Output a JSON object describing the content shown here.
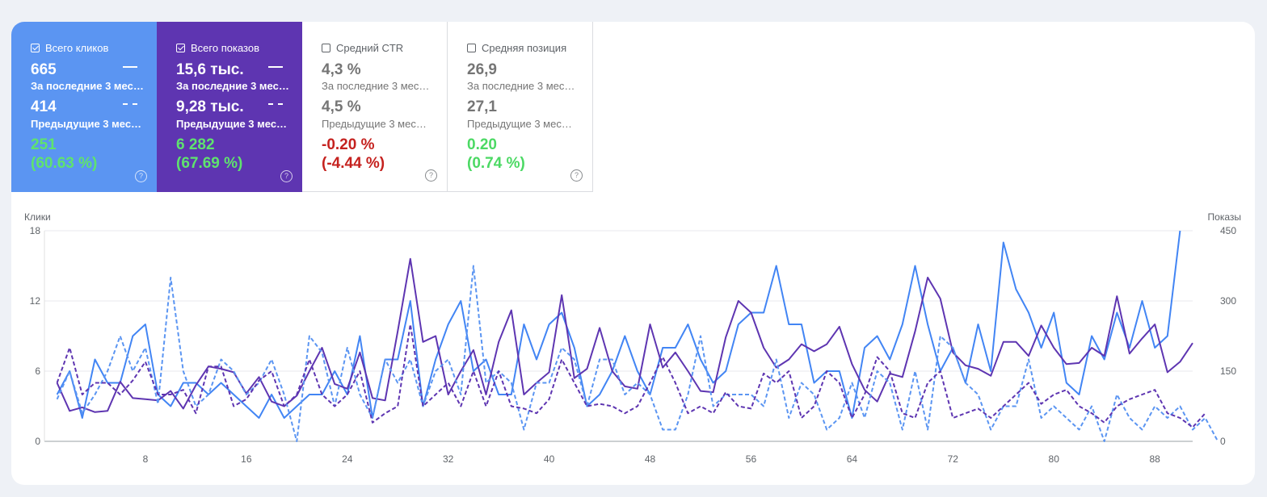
{
  "cards": {
    "clicks": {
      "title": "Всего кликов",
      "checked": true,
      "current_value": "665",
      "current_label": "За последние 3 мес…",
      "previous_value": "414",
      "previous_label": "Предыдущие 3 мес…",
      "delta_abs": "251",
      "delta_pct": "(60.63 %)",
      "delta_direction": "up",
      "help": "?"
    },
    "impressions": {
      "title": "Всего показов",
      "checked": true,
      "current_value": "15,6 тыс.",
      "current_label": "За последние 3 мес…",
      "previous_value": "9,28 тыс.",
      "previous_label": "Предыдущие 3 мес…",
      "delta_abs": "6 282",
      "delta_pct": "(67.69 %)",
      "delta_direction": "up",
      "help": "?"
    },
    "ctr": {
      "title": "Средний CTR",
      "checked": false,
      "current_value": "4,3 %",
      "current_label": "За последние 3 мес…",
      "previous_value": "4,5 %",
      "previous_label": "Предыдущие 3 мес…",
      "delta_abs": "-0.20 %",
      "delta_pct": "(-4.44 %)",
      "delta_direction": "down",
      "help": "?"
    },
    "position": {
      "title": "Средняя позиция",
      "checked": false,
      "current_value": "26,9",
      "current_label": "За последние 3 мес…",
      "previous_value": "27,1",
      "previous_label": "Предыдущие 3 мес…",
      "delta_abs": "0.20",
      "delta_pct": "(0.74 %)",
      "delta_direction": "up",
      "help": "?"
    }
  },
  "colors": {
    "clicks": "#5b95f2",
    "impressions": "#5e35b1",
    "positive": "#4cd964",
    "negative": "#c5221f"
  },
  "chart_data": {
    "type": "line",
    "ylabel_left": "Клики",
    "ylabel_right": "Показы",
    "ylim_left": [
      0,
      18
    ],
    "ylim_right": [
      0,
      450
    ],
    "yticks_left": [
      0,
      6,
      12,
      18
    ],
    "yticks_right": [
      0,
      150,
      300,
      450
    ],
    "xticks": [
      8,
      16,
      24,
      32,
      40,
      48,
      56,
      64,
      72,
      80,
      88
    ],
    "xlim": [
      0,
      91
    ],
    "grid": true,
    "legend": "none",
    "series": [
      {
        "axis": "left",
        "style": "solid",
        "color": "#4285f4",
        "period": "current",
        "values": [
          4,
          6,
          2,
          7,
          5,
          5,
          9,
          10,
          4,
          3,
          5,
          5,
          4,
          5,
          4,
          3,
          2,
          4,
          2,
          3,
          4,
          4,
          6,
          4,
          9,
          2,
          7,
          7,
          12,
          3,
          7,
          10,
          12,
          6,
          7,
          4,
          4,
          10,
          7,
          10,
          11,
          8,
          3,
          4,
          6,
          9,
          6,
          4,
          8,
          8,
          10,
          7,
          5,
          6,
          10,
          11,
          11,
          15,
          10,
          10,
          5,
          6,
          6,
          2,
          8,
          9,
          7,
          10,
          15,
          10,
          6,
          8,
          5,
          10,
          6,
          17,
          13,
          11,
          8,
          11,
          5,
          4,
          9,
          7,
          11,
          8,
          12,
          8,
          9,
          18
        ]
      },
      {
        "axis": "left",
        "style": "solid",
        "color": "#5e35b1",
        "period": "current",
        "values": [
          5,
          2.6,
          2.9,
          2.5,
          2.6,
          5.1,
          3.7,
          3.6,
          3.5,
          4.3,
          2.8,
          4.8,
          6.4,
          6.2,
          5.9,
          4.1,
          5.5,
          3.4,
          3,
          3.9,
          6,
          8,
          4.9,
          4.5,
          7.6,
          3.7,
          3.5,
          9.4,
          15.6,
          8.5,
          9,
          4,
          6,
          7.8,
          4,
          8.5,
          11.2,
          4,
          5,
          5.9,
          12.5,
          5.4,
          6.2,
          9.7,
          6,
          4.7,
          4.5,
          10,
          6.3,
          7.6,
          6,
          4.3,
          4.2,
          8.9,
          12,
          11,
          8,
          6.3,
          7,
          8.3,
          7.7,
          8.3,
          9.8,
          6.6,
          4.4,
          3.4,
          5.8,
          5.5,
          9.4,
          14,
          12.2,
          7.6,
          6.5,
          6.2,
          5.6,
          8.5,
          8.5,
          7.3,
          9.9,
          8,
          6.6,
          6.7,
          8,
          7.3,
          12.4,
          7.5,
          8.8,
          10,
          5.9,
          6.8,
          8.4
        ]
      },
      {
        "axis": "right",
        "style": "dashed",
        "color": "#5b95f2",
        "period": "previous",
        "values": [
          90,
          150,
          60,
          100,
          150,
          225,
          150,
          200,
          80,
          350,
          150,
          75,
          100,
          175,
          150,
          100,
          125,
          175,
          100,
          0,
          225,
          190,
          75,
          200,
          100,
          50,
          175,
          125,
          175,
          75,
          150,
          175,
          100,
          375,
          125,
          150,
          125,
          25,
          125,
          125,
          200,
          175,
          75,
          175,
          175,
          100,
          125,
          100,
          25,
          25,
          100,
          225,
          75,
          100,
          100,
          100,
          75,
          175,
          50,
          125,
          100,
          25,
          50,
          125,
          50,
          150,
          125,
          25,
          150,
          25,
          225,
          200,
          125,
          100,
          25,
          75,
          75,
          175,
          50,
          75,
          50,
          25,
          75,
          0,
          100,
          50,
          25,
          75,
          50,
          75,
          25,
          50,
          0
        ]
      },
      {
        "axis": "right",
        "style": "dashed",
        "color": "#5e35b1",
        "period": "previous",
        "values": [
          125,
          200,
          100,
          125,
          125,
          100,
          130,
          170,
          100,
          100,
          110,
          60,
          160,
          160,
          75,
          90,
          130,
          150,
          75,
          100,
          175,
          100,
          75,
          100,
          150,
          40,
          60,
          75,
          250,
          75,
          100,
          125,
          75,
          150,
          75,
          150,
          75,
          70,
          60,
          90,
          175,
          125,
          75,
          80,
          75,
          60,
          75,
          125,
          180,
          125,
          60,
          75,
          60,
          105,
          75,
          70,
          145,
          125,
          150,
          50,
          75,
          150,
          125,
          50,
          100,
          180,
          150,
          60,
          50,
          125,
          150,
          50,
          60,
          70,
          50,
          75,
          100,
          125,
          80,
          100,
          110,
          75,
          60,
          40,
          75,
          90,
          100,
          110,
          60,
          50,
          30,
          60
        ]
      }
    ]
  }
}
